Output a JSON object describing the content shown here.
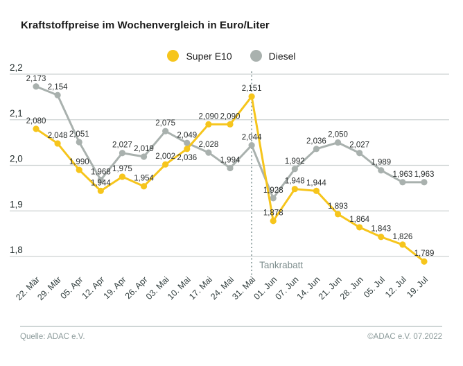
{
  "title": "Kraftstoffpreise im Wochenvergleich in Euro/Liter",
  "chart_data": {
    "type": "line",
    "title": "Kraftstoffpreise im Wochenvergleich in Euro/Liter",
    "unit": "Euro/Liter",
    "categories": [
      "22. Mär",
      "29. Mär",
      "05. Apr",
      "12. Apr",
      "19. Apr",
      "26. Apr",
      "03. Mai",
      "10. Mai",
      "17. Mai",
      "24. Mai",
      "31. Mai",
      "01. Jun",
      "07. Jun",
      "14. Jun",
      "21. Jun",
      "28. Jun",
      "05. Jul",
      "12. Jul",
      "19. Jul"
    ],
    "series": [
      {
        "name": "Super E10",
        "color": "#F6C51C",
        "values": [
          2.08,
          2.048,
          1.99,
          1.944,
          1.975,
          1.954,
          2.002,
          2.036,
          2.09,
          2.09,
          2.151,
          1.878,
          1.948,
          1.944,
          1.893,
          1.864,
          1.843,
          1.826,
          1.789
        ]
      },
      {
        "name": "Diesel",
        "color": "#A9B1AE",
        "values": [
          2.173,
          2.154,
          2.051,
          1.968,
          2.027,
          2.019,
          2.075,
          2.049,
          2.028,
          1.994,
          2.044,
          1.928,
          1.992,
          2.036,
          2.05,
          2.027,
          1.989,
          1.963,
          1.963
        ]
      }
    ],
    "yticks": [
      2.2,
      2.1,
      2.0,
      1.9,
      1.8
    ],
    "ylim": [
      1.75,
      2.2
    ],
    "decimal_separator": ",",
    "grid": true,
    "legend_position": "top-center",
    "annotation": {
      "label": "Tankrabatt",
      "category": "31. Mai",
      "x_index": 10,
      "color": "#7e8e8e"
    },
    "label_below_indices": {
      "Super E10": [
        7
      ],
      "Diesel": []
    },
    "colors": {
      "grid": "#cdd2d2",
      "axis_text": "#2f3c3c",
      "value_label": "#2a2e2e",
      "annotation_line": "#8fa0a0"
    }
  },
  "footer": {
    "source": "Quelle: ADAC e.V.",
    "copyright": "©ADAC e.V.  07.2022"
  }
}
